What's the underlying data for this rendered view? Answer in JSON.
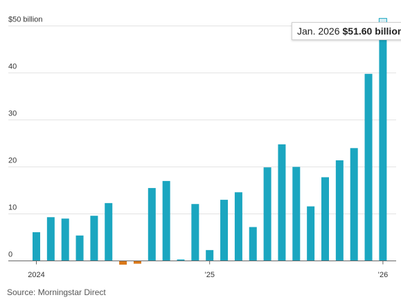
{
  "chart_data": {
    "type": "bar",
    "title": "",
    "xlabel": "",
    "ylabel": "",
    "ylim": [
      0,
      50
    ],
    "y_ticks": [
      0,
      10,
      20,
      30,
      40,
      50
    ],
    "y_tick_labels": [
      "0",
      "10",
      "20",
      "30",
      "40",
      "$50 billion"
    ],
    "grid": true,
    "colors": {
      "positive": "#1ba6c0",
      "negative": "#d9781a",
      "highlight": "#1ba6c0"
    },
    "categories": [
      "Jan. 2024",
      "Feb. 2024",
      "Mar. 2024",
      "Apr. 2024",
      "May 2024",
      "Jun. 2024",
      "Jul. 2024",
      "Aug. 2024",
      "Sep. 2024",
      "Oct. 2024",
      "Nov. 2024",
      "Dec. 2024",
      "Jan. 2025",
      "Feb. 2025",
      "Mar. 2025",
      "Apr. 2025",
      "May 2025",
      "Jun. 2025",
      "Jul. 2025",
      "Aug. 2025",
      "Sep. 2025",
      "Oct. 2025",
      "Nov. 2025",
      "Dec. 2025",
      "Jan. 2026"
    ],
    "values": [
      6.1,
      9.3,
      9.0,
      5.4,
      9.6,
      12.3,
      -0.8,
      -0.6,
      15.5,
      17.0,
      0.3,
      12.1,
      2.3,
      13.0,
      14.6,
      7.2,
      19.9,
      24.8,
      20.0,
      11.6,
      17.8,
      21.4,
      24.0,
      39.8,
      51.6
    ],
    "x_tick_labels": [
      {
        "index": 0,
        "label": "2024"
      },
      {
        "index": 12,
        "label": "’25"
      },
      {
        "index": 24,
        "label": "’26"
      }
    ],
    "highlight_index": 24,
    "tooltip": {
      "date": "Jan. 2026",
      "value": "$51.60 billion"
    }
  },
  "source": "Source: Morningstar Direct"
}
